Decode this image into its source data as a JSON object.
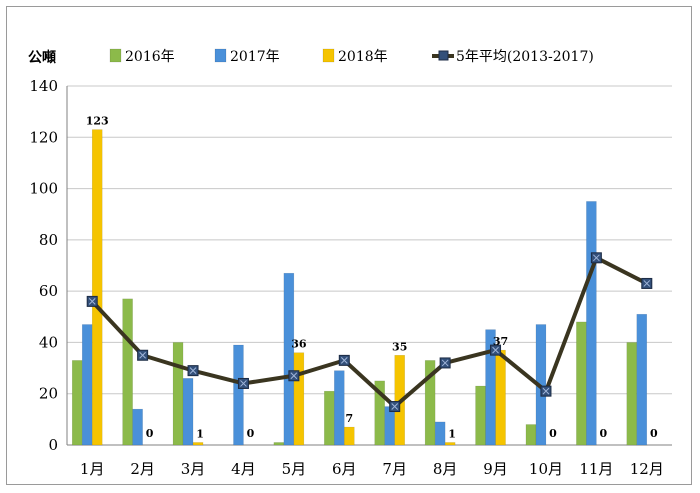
{
  "chart_data": {
    "type": "bar",
    "unit_label": "公噸",
    "categories": [
      "1月",
      "2月",
      "3月",
      "4月",
      "5月",
      "6月",
      "7月",
      "8月",
      "9月",
      "10月",
      "11月",
      "12月"
    ],
    "series": [
      {
        "name": "2016年",
        "type": "bar",
        "color": "#8cba4a",
        "values": [
          33,
          57,
          40,
          0,
          1,
          21,
          25,
          33,
          23,
          8,
          48,
          40
        ]
      },
      {
        "name": "2017年",
        "type": "bar",
        "color": "#4a90d9",
        "values": [
          47,
          14,
          26,
          39,
          67,
          29,
          15,
          9,
          45,
          47,
          95,
          51
        ]
      },
      {
        "name": "2018年",
        "type": "bar",
        "color": "#f5c400",
        "values": [
          123,
          0,
          1,
          0,
          36,
          7,
          35,
          1,
          37,
          0,
          0,
          0
        ]
      },
      {
        "name": "5年平均(2013-2017)",
        "type": "line",
        "color": "#3a3520",
        "values": [
          56,
          35,
          29,
          24,
          27,
          33,
          15,
          32,
          37,
          21,
          73,
          63
        ]
      }
    ],
    "data_labels": {
      "series": "2018年",
      "values": [
        "123",
        "0",
        "1",
        "0",
        "36",
        "7",
        "35",
        "1",
        "37",
        "0",
        "0",
        "0"
      ]
    },
    "ylim": [
      0,
      140
    ],
    "yticks": [
      "0",
      "20",
      "40",
      "60",
      "80",
      "100",
      "120",
      "140"
    ],
    "grid": true,
    "legend_position": "top"
  }
}
